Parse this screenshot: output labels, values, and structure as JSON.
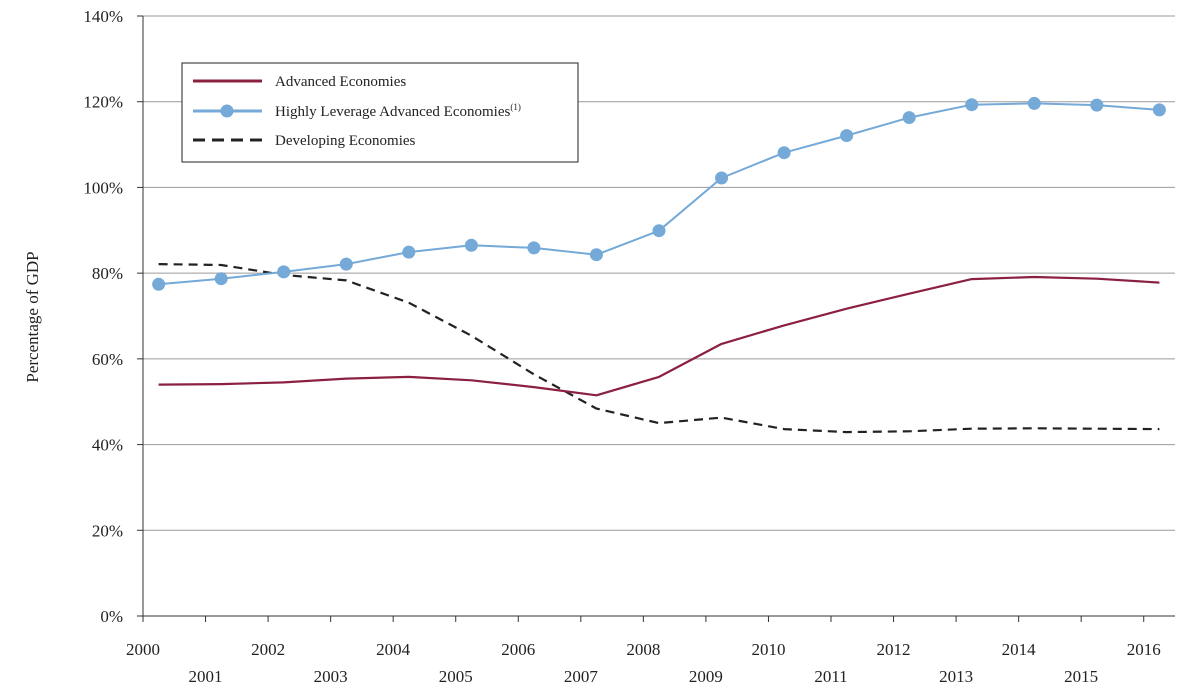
{
  "chart_data": {
    "type": "line",
    "title": "",
    "xlabel": "",
    "ylabel": "Percentage of GDP",
    "ylim": [
      0,
      140
    ],
    "yticks": [
      0,
      20,
      40,
      60,
      80,
      100,
      120,
      140
    ],
    "ytick_labels": [
      "0%",
      "20%",
      "40%",
      "60%",
      "80%",
      "100%",
      "120%",
      "140%"
    ],
    "x_tick_labels_row1": [
      "2000",
      "2002",
      "2004",
      "2006",
      "2008",
      "2010",
      "2012",
      "2014",
      "2016"
    ],
    "x_tick_labels_row2": [
      "2001",
      "2003",
      "2005",
      "2007",
      "2009",
      "2011",
      "2013",
      "2015"
    ],
    "grid": "horizontal",
    "legend_placement": "top-left",
    "x": [
      1999.75,
      2000.75,
      2001.75,
      2002.75,
      2003.75,
      2004.75,
      2005.75,
      2006.75,
      2007.75,
      2008.75,
      2009.75,
      2010.75,
      2011.75,
      2012.75,
      2013.75,
      2014.75,
      2015.75
    ],
    "series": [
      {
        "name": "Advanced Economies",
        "color": "#8b2040",
        "style": "solid",
        "values": [
          54.0,
          54.1,
          54.5,
          55.4,
          55.8,
          55.0,
          53.4,
          51.5,
          55.8,
          63.5,
          67.8,
          71.7,
          75.2,
          78.6,
          79.1,
          78.7,
          77.8
        ]
      },
      {
        "name": "Highly Leverage Advanced Economies",
        "name_superscript": "(1)",
        "color": "#74a9d8",
        "style": "solid-with-markers",
        "values": [
          77.4,
          78.7,
          80.3,
          82.1,
          84.9,
          86.5,
          85.9,
          84.3,
          89.9,
          102.2,
          108.1,
          112.1,
          116.3,
          119.3,
          119.6,
          119.2,
          118.1
        ]
      },
      {
        "name": "Developing Economies",
        "color": "#222222",
        "style": "dashed",
        "values": [
          82.1,
          81.9,
          79.6,
          78.3,
          73.1,
          65.4,
          56.4,
          48.4,
          45.0,
          46.3,
          43.6,
          42.9,
          43.1,
          43.7,
          43.8,
          43.7,
          43.6
        ]
      }
    ]
  }
}
